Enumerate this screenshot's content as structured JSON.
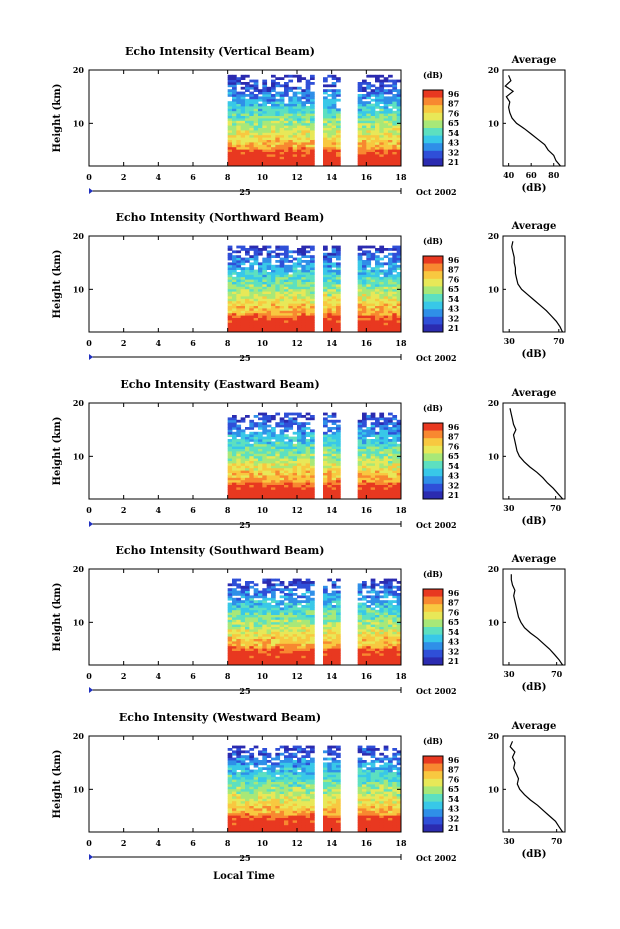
{
  "figure": {
    "xlabel": "Local Time",
    "date_label": "Oct 2002",
    "day_label": "25",
    "colorbar_unit": "(dB)",
    "colorbar_ticks": [
      "96",
      "87",
      "76",
      "65",
      "54",
      "43",
      "32",
      "21"
    ],
    "colorscale": [
      "#2b2bb0",
      "#2f4fd8",
      "#2f8fe8",
      "#38c8e8",
      "#5de0c0",
      "#a8e878",
      "#e8e858",
      "#f8c840",
      "#f88830",
      "#e83820"
    ],
    "avg_title": "Average",
    "avg_xlabel": "(dB)",
    "ylabel": "Height (km)"
  },
  "chart_data": [
    {
      "type": "heatmap",
      "title": "Echo Intensity (Vertical Beam)",
      "xlim": [
        0,
        18
      ],
      "ylim": [
        2,
        20
      ],
      "xticks": [
        "0",
        "2",
        "4",
        "6",
        "8",
        "10",
        "12",
        "14",
        "16",
        "18"
      ],
      "yticks": [
        "10",
        "20"
      ],
      "data_start_hour": 8,
      "gaps_hours": [
        [
          13.0,
          13.4
        ],
        [
          14.4,
          15.5
        ]
      ],
      "echo_top_km": 19,
      "avg": {
        "xticks": [
          "40",
          "60",
          "80"
        ],
        "xlim": [
          35,
          90
        ],
        "heights_km": [
          2,
          3,
          4,
          5,
          6,
          7,
          8,
          9,
          10,
          11,
          12,
          13,
          14,
          15,
          16,
          17,
          18,
          19
        ],
        "values_db": [
          86,
          82,
          80,
          75,
          72,
          66,
          60,
          54,
          47,
          43,
          41,
          40,
          41,
          38,
          44,
          37,
          42,
          40
        ]
      }
    },
    {
      "type": "heatmap",
      "title": "Echo Intensity (Northward Beam)",
      "xlim": [
        0,
        18
      ],
      "ylim": [
        2,
        20
      ],
      "xticks": [
        "0",
        "2",
        "4",
        "6",
        "8",
        "10",
        "12",
        "14",
        "16",
        "18"
      ],
      "yticks": [
        "10",
        "20"
      ],
      "data_start_hour": 8,
      "gaps_hours": [
        [
          13.0,
          13.4
        ],
        [
          14.4,
          15.5
        ]
      ],
      "echo_top_km": 18,
      "avg": {
        "xticks": [
          "30",
          "70"
        ],
        "xlim": [
          25,
          75
        ],
        "heights_km": [
          2,
          3,
          4,
          5,
          6,
          7,
          8,
          9,
          10,
          11,
          12,
          13,
          14,
          15,
          16,
          17,
          18,
          19
        ],
        "values_db": [
          73,
          71,
          68,
          64,
          60,
          55,
          50,
          45,
          40,
          37,
          36,
          35,
          35,
          34,
          34,
          33,
          32,
          33
        ]
      }
    },
    {
      "type": "heatmap",
      "title": "Echo Intensity (Eastward Beam)",
      "xlim": [
        0,
        18
      ],
      "ylim": [
        2,
        20
      ],
      "xticks": [
        "0",
        "2",
        "4",
        "6",
        "8",
        "10",
        "12",
        "14",
        "16",
        "18"
      ],
      "yticks": [
        "10",
        "20"
      ],
      "data_start_hour": 8,
      "gaps_hours": [
        [
          13.0,
          13.4
        ],
        [
          14.4,
          15.5
        ]
      ],
      "echo_top_km": 18,
      "avg": {
        "xticks": [
          "30",
          "70"
        ],
        "xlim": [
          25,
          78
        ],
        "heights_km": [
          2,
          3,
          4,
          5,
          6,
          7,
          8,
          9,
          10,
          11,
          12,
          13,
          14,
          15,
          16,
          17,
          18,
          19
        ],
        "values_db": [
          76,
          72,
          68,
          63,
          59,
          54,
          48,
          43,
          39,
          37,
          36,
          35,
          34,
          36,
          34,
          33,
          32,
          31
        ]
      }
    },
    {
      "type": "heatmap",
      "title": "Echo Intensity (Southward Beam)",
      "xlim": [
        0,
        18
      ],
      "ylim": [
        2,
        20
      ],
      "xticks": [
        "0",
        "2",
        "4",
        "6",
        "8",
        "10",
        "12",
        "14",
        "16",
        "18"
      ],
      "yticks": [
        "10",
        "20"
      ],
      "data_start_hour": 8,
      "gaps_hours": [
        [
          13.0,
          13.4
        ],
        [
          14.4,
          15.5
        ]
      ],
      "echo_top_km": 18,
      "avg": {
        "xticks": [
          "30",
          "70"
        ],
        "xlim": [
          25,
          77
        ],
        "heights_km": [
          2,
          3,
          4,
          5,
          6,
          7,
          8,
          9,
          10,
          11,
          12,
          13,
          14,
          15,
          16,
          17,
          18,
          19
        ],
        "values_db": [
          75,
          72,
          68,
          64,
          59,
          54,
          48,
          43,
          40,
          38,
          37,
          36,
          35,
          34,
          35,
          33,
          32,
          32
        ]
      }
    },
    {
      "type": "heatmap",
      "title": "Echo Intensity (Westward Beam)",
      "xlim": [
        0,
        18
      ],
      "ylim": [
        2,
        20
      ],
      "xticks": [
        "0",
        "2",
        "4",
        "6",
        "8",
        "10",
        "12",
        "14",
        "16",
        "18"
      ],
      "yticks": [
        "10",
        "20"
      ],
      "data_start_hour": 8,
      "gaps_hours": [
        [
          13.0,
          13.4
        ],
        [
          14.4,
          15.5
        ]
      ],
      "echo_top_km": 18,
      "avg": {
        "xticks": [
          "30",
          "70"
        ],
        "xlim": [
          25,
          77
        ],
        "heights_km": [
          2,
          3,
          4,
          5,
          6,
          7,
          8,
          9,
          10,
          11,
          12,
          13,
          14,
          15,
          16,
          17,
          18,
          19
        ],
        "values_db": [
          75,
          72,
          69,
          64,
          59,
          54,
          48,
          43,
          39,
          37,
          38,
          36,
          34,
          35,
          33,
          35,
          31,
          33
        ]
      }
    }
  ]
}
